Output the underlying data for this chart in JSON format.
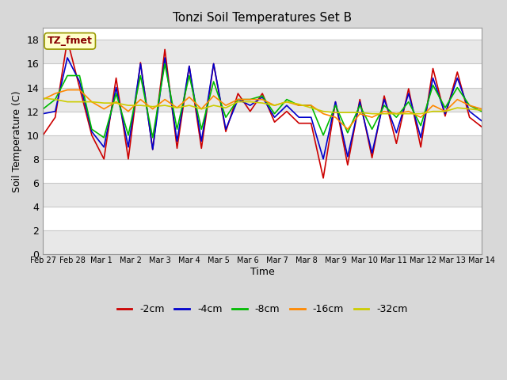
{
  "title": "Tonzi Soil Temperatures Set B",
  "xlabel": "Time",
  "ylabel": "Soil Temperature (C)",
  "ylim": [
    0,
    19
  ],
  "yticks": [
    0,
    2,
    4,
    6,
    8,
    10,
    12,
    14,
    16,
    18
  ],
  "annotation_text": "TZ_fmet",
  "colors": {
    "-2cm": "#cc0000",
    "-4cm": "#0000cc",
    "-8cm": "#00bb00",
    "-16cm": "#ff8800",
    "-32cm": "#cccc00"
  },
  "legend_labels": [
    "-2cm",
    "-4cm",
    "-8cm",
    "-16cm",
    "-32cm"
  ],
  "x_tick_labels": [
    "Feb 27",
    "Feb 28",
    "Mar 1",
    "Mar 2",
    "Mar 3",
    "Mar 4",
    "Mar 5",
    "Mar 6",
    "Mar 7",
    "Mar 8",
    "Mar 9",
    "Mar 10",
    "Mar 11",
    "Mar 12",
    "Mar 13",
    "Mar 14"
  ],
  "figure_bg": "#d8d8d8",
  "plot_bg": "#ffffff",
  "band_colors": [
    "#e8e8e8",
    "#ffffff"
  ],
  "grid_line_color": "#c8c8c8",
  "series": {
    "-2cm": [
      10.0,
      11.5,
      18.0,
      14.0,
      10.0,
      8.0,
      14.8,
      8.0,
      16.1,
      8.8,
      17.2,
      8.9,
      15.8,
      8.9,
      16.0,
      10.3,
      13.5,
      12.0,
      13.5,
      11.1,
      12.0,
      11.0,
      11.0,
      6.4,
      12.8,
      7.5,
      13.0,
      8.1,
      13.3,
      9.3,
      13.9,
      9.0,
      15.6,
      11.6,
      15.3,
      11.5,
      10.7
    ],
    "-4cm": [
      11.8,
      12.0,
      16.5,
      14.5,
      10.3,
      9.0,
      14.0,
      9.0,
      16.0,
      8.8,
      16.5,
      9.5,
      15.8,
      9.5,
      16.0,
      10.5,
      13.0,
      12.5,
      13.2,
      11.5,
      12.5,
      11.5,
      11.5,
      8.0,
      12.8,
      8.2,
      12.8,
      8.5,
      13.0,
      10.2,
      13.5,
      9.8,
      14.8,
      11.8,
      14.8,
      12.0,
      11.2
    ],
    "-8cm": [
      12.2,
      13.0,
      15.0,
      15.0,
      10.5,
      9.8,
      13.5,
      10.0,
      15.0,
      9.8,
      16.0,
      10.5,
      15.0,
      10.5,
      14.5,
      11.5,
      13.0,
      13.0,
      13.3,
      11.8,
      13.0,
      12.5,
      12.5,
      10.0,
      12.5,
      10.2,
      12.5,
      10.5,
      12.5,
      11.5,
      12.8,
      10.8,
      14.2,
      12.3,
      14.0,
      12.5,
      12.0
    ],
    "-16cm": [
      13.0,
      13.5,
      13.8,
      13.8,
      12.8,
      12.2,
      12.8,
      12.0,
      13.0,
      12.2,
      13.0,
      12.3,
      13.2,
      12.2,
      13.3,
      12.5,
      13.0,
      13.0,
      13.0,
      12.5,
      12.8,
      12.5,
      12.5,
      11.8,
      11.5,
      10.5,
      11.8,
      11.5,
      12.0,
      11.8,
      12.0,
      11.5,
      12.5,
      12.0,
      13.0,
      12.5,
      12.2
    ],
    "-32cm": [
      13.1,
      13.0,
      12.8,
      12.8,
      12.8,
      12.7,
      12.7,
      12.5,
      12.5,
      12.4,
      12.5,
      12.3,
      12.5,
      12.2,
      12.5,
      12.3,
      12.8,
      12.8,
      12.7,
      12.5,
      12.8,
      12.6,
      12.3,
      12.0,
      11.9,
      11.9,
      11.9,
      11.8,
      11.8,
      11.8,
      11.8,
      11.8,
      12.0,
      12.0,
      12.3,
      12.2,
      12.1
    ]
  }
}
